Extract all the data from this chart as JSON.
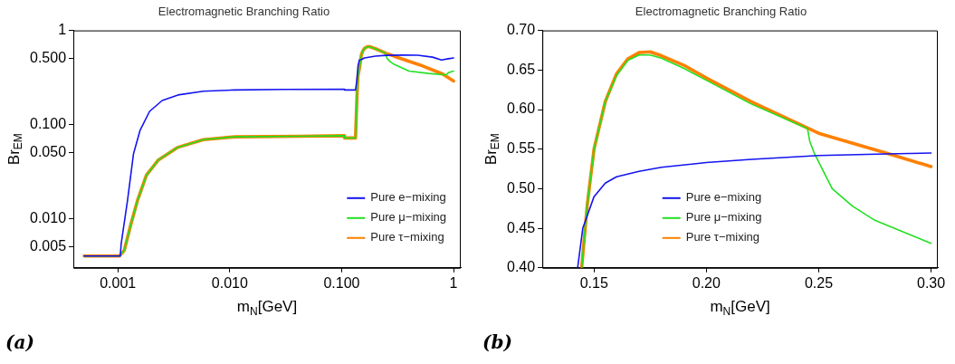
{
  "chart_data": [
    {
      "type": "line",
      "title": "Electromagnetic Branching Ratio",
      "xlabel": "m$_{N}$[GeV]",
      "ylabel": "Br$_{EM}$",
      "log": "xy",
      "xlim": [
        0.0004,
        1.16
      ],
      "ylim": [
        0.003,
        1
      ],
      "xticks": [
        {
          "value": 0.001,
          "label": "0.001"
        },
        {
          "value": 0.01,
          "label": "0.010"
        },
        {
          "value": 0.1,
          "label": "0.100"
        },
        1
      ],
      "yticks": [
        {
          "value": 0.005,
          "label": "0.005"
        },
        {
          "value": 0.01,
          "label": "0.010"
        },
        {
          "value": 0.05,
          "label": "0.050"
        },
        {
          "value": 0.1,
          "label": "0.100"
        },
        {
          "value": 0.5,
          "label": "0.500"
        },
        1
      ],
      "legend": "bottom right",
      "series": [
        {
          "name": "Pure e−mixing",
          "color": "#1414f0",
          "x": [
            0.0005,
            0.00105,
            0.00107,
            0.00122,
            0.00138,
            0.00158,
            0.00192,
            0.00249,
            0.00344,
            0.0058,
            0.011,
            0.03,
            0.105,
            0.106,
            0.133,
            0.137,
            0.14,
            0.144,
            0.15,
            0.16,
            0.2,
            0.25,
            0.35,
            0.48,
            0.65,
            0.78,
            0.9,
            1
          ],
          "values": [
            0.004,
            0.004,
            0.0054,
            0.0157,
            0.049,
            0.087,
            0.138,
            0.18,
            0.206,
            0.226,
            0.233,
            0.236,
            0.237,
            0.233,
            0.233,
            0.3,
            0.42,
            0.485,
            0.49,
            0.51,
            0.533,
            0.543,
            0.546,
            0.545,
            0.52,
            0.485,
            0.5,
            0.51
          ]
        },
        {
          "name": "Pure μ−mixing",
          "color": "#22e022",
          "x": [
            0.0005,
            0.00103,
            0.00114,
            0.0013,
            0.0015,
            0.0018,
            0.0023,
            0.0034,
            0.0058,
            0.011,
            0.041,
            0.105,
            0.106,
            0.133,
            0.137,
            0.14,
            0.1445,
            0.15,
            0.155,
            0.16,
            0.17,
            0.175,
            0.18,
            0.2,
            0.22,
            0.245,
            0.246,
            0.248,
            0.256,
            0.275,
            0.3,
            0.4,
            0.6,
            0.85,
            0.9,
            1
          ],
          "values": [
            0.004,
            0.004,
            0.0046,
            0.0085,
            0.0157,
            0.029,
            0.042,
            0.057,
            0.069,
            0.074,
            0.075,
            0.076,
            0.072,
            0.072,
            0.2,
            0.33,
            0.4,
            0.55,
            0.61,
            0.643,
            0.669,
            0.669,
            0.665,
            0.637,
            0.607,
            0.576,
            0.56,
            0.545,
            0.5,
            0.46,
            0.431,
            0.37,
            0.349,
            0.336,
            0.355,
            0.37
          ]
        },
        {
          "name": "Pure τ−mixing",
          "color": "#ff8000",
          "x": [
            0.0005,
            0.00103,
            0.00114,
            0.0013,
            0.0015,
            0.0018,
            0.0023,
            0.0034,
            0.0058,
            0.011,
            0.041,
            0.105,
            0.106,
            0.133,
            0.137,
            0.14,
            0.1445,
            0.15,
            0.155,
            0.16,
            0.17,
            0.175,
            0.18,
            0.2,
            0.22,
            0.25,
            0.28,
            0.3,
            0.5,
            0.8,
            1
          ],
          "values": [
            0.004,
            0.004,
            0.0046,
            0.0085,
            0.0157,
            0.029,
            0.042,
            0.057,
            0.069,
            0.074,
            0.075,
            0.076,
            0.072,
            0.072,
            0.2,
            0.33,
            0.4,
            0.55,
            0.61,
            0.645,
            0.672,
            0.673,
            0.668,
            0.64,
            0.61,
            0.57,
            0.545,
            0.528,
            0.43,
            0.344,
            0.29
          ]
        }
      ],
      "annotations": [
        "(a)"
      ]
    },
    {
      "type": "line",
      "title": "Electromagnetic Branching Ratio",
      "xlabel": "m$_{N}$[GeV]",
      "ylabel": "Br$_{EM}$",
      "xlim": [
        0.127,
        0.303
      ],
      "ylim": [
        0.4,
        0.7
      ],
      "xticks": [
        {
          "value": 0.15,
          "label": "0.15"
        },
        {
          "value": 0.2,
          "label": "0.20"
        },
        {
          "value": 0.25,
          "label": "0.25"
        },
        {
          "value": 0.3,
          "label": "0.30"
        }
      ],
      "yticks": [
        {
          "value": 0.4,
          "label": "0.40"
        },
        {
          "value": 0.45,
          "label": "0.45"
        },
        {
          "value": 0.5,
          "label": "0.50"
        },
        {
          "value": 0.55,
          "label": "0.55"
        },
        {
          "value": 0.6,
          "label": "0.60"
        },
        {
          "value": 0.65,
          "label": "0.65"
        },
        {
          "value": 0.7,
          "label": "0.70"
        }
      ],
      "legend": "bottom",
      "series": [
        {
          "name": "Pure e−mixing",
          "color": "#1414f0",
          "x": [
            0.1427,
            0.145,
            0.15,
            0.155,
            0.16,
            0.17,
            0.18,
            0.2,
            0.22,
            0.25,
            0.28,
            0.3
          ],
          "values": [
            0.4,
            0.45,
            0.49,
            0.507,
            0.515,
            0.522,
            0.527,
            0.533,
            0.537,
            0.542,
            0.544,
            0.545
          ]
        },
        {
          "name": "Pure μ−mixing",
          "color": "#22e022",
          "x": [
            0.1445,
            0.147,
            0.15,
            0.155,
            0.16,
            0.165,
            0.17,
            0.175,
            0.18,
            0.19,
            0.2,
            0.22,
            0.245,
            0.246,
            0.248,
            0.256,
            0.265,
            0.275,
            0.3
          ],
          "values": [
            0.4,
            0.48,
            0.55,
            0.61,
            0.643,
            0.662,
            0.669,
            0.669,
            0.665,
            0.652,
            0.637,
            0.607,
            0.576,
            0.56,
            0.545,
            0.5,
            0.478,
            0.46,
            0.431
          ]
        },
        {
          "name": "Pure τ−mixing",
          "color": "#ff8000",
          "x": [
            0.1445,
            0.147,
            0.15,
            0.155,
            0.16,
            0.165,
            0.17,
            0.175,
            0.18,
            0.19,
            0.2,
            0.22,
            0.25,
            0.28,
            0.3
          ],
          "values": [
            0.4,
            0.48,
            0.55,
            0.61,
            0.645,
            0.664,
            0.672,
            0.673,
            0.668,
            0.656,
            0.64,
            0.61,
            0.57,
            0.545,
            0.528
          ]
        }
      ],
      "annotations": [
        "(b)"
      ]
    }
  ]
}
